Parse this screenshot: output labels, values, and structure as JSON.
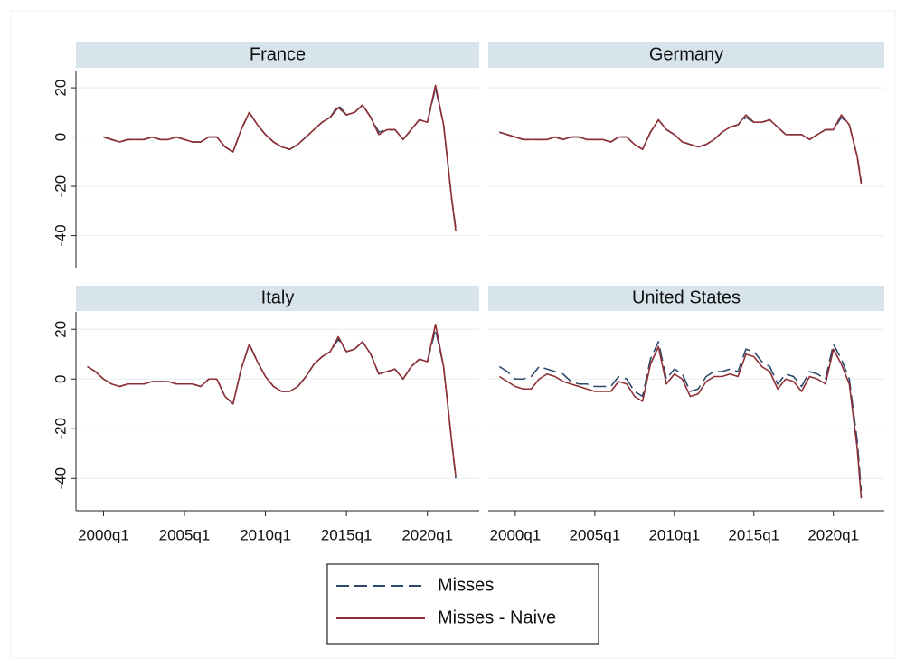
{
  "chart_data": [
    {
      "type": "line",
      "title": "France",
      "grid": true,
      "xlim": [
        1998.3,
        2023.2
      ],
      "ylim": [
        -53,
        27
      ],
      "yticks": [
        -40,
        -20,
        0,
        20
      ],
      "x": [
        1999,
        1999.5,
        2000,
        2000.5,
        2001,
        2001.5,
        2002,
        2002.5,
        2003,
        2003.5,
        2004,
        2004.5,
        2005,
        2005.5,
        2006,
        2006.5,
        2007,
        2007.5,
        2008,
        2008.5,
        2009,
        2009.5,
        2010,
        2010.5,
        2011,
        2011.5,
        2012,
        2012.5,
        2013,
        2013.5,
        2014,
        2014.5,
        2015,
        2015.5,
        2016,
        2016.5,
        2017,
        2017.5,
        2018,
        2018.5,
        2019,
        2019.5,
        2020,
        2020.5,
        2021,
        2021.5,
        2021.75
      ],
      "series": [
        {
          "name": "Misses",
          "color": "#2e4a6b",
          "line_style": "dashed",
          "values": [
            null,
            null,
            0,
            -1,
            -2,
            -1,
            -1,
            -1,
            0,
            -1,
            -1,
            0,
            -1,
            -2,
            -2,
            0,
            0,
            -4,
            -6,
            3,
            10,
            5,
            1,
            -2,
            -4,
            -5,
            -3,
            0,
            3,
            6,
            8,
            13,
            9,
            10,
            13,
            8,
            2,
            3,
            3,
            -1,
            3,
            7,
            6,
            20,
            5,
            -25,
            -37
          ]
        },
        {
          "name": "Misses - Naive",
          "color": "#8e2e34",
          "line_style": "solid",
          "values": [
            null,
            null,
            0,
            -1,
            -2,
            -1,
            -1,
            -1,
            0,
            -1,
            -1,
            0,
            -1,
            -2,
            -2,
            0,
            0,
            -4,
            -6,
            3,
            10,
            5,
            1,
            -2,
            -4,
            -5,
            -3,
            0,
            3,
            6,
            8,
            12,
            9,
            10,
            13,
            8,
            1,
            3,
            3,
            -1,
            3,
            7,
            6,
            21,
            5,
            -25,
            -38
          ]
        }
      ]
    },
    {
      "type": "line",
      "title": "Germany",
      "grid": true,
      "xlim": [
        1998.3,
        2023.2
      ],
      "ylim": [
        -53,
        27
      ],
      "yticks": [
        -40,
        -20,
        0,
        20
      ],
      "x": [
        1999,
        1999.5,
        2000,
        2000.5,
        2001,
        2001.5,
        2002,
        2002.5,
        2003,
        2003.5,
        2004,
        2004.5,
        2005,
        2005.5,
        2006,
        2006.5,
        2007,
        2007.5,
        2008,
        2008.5,
        2009,
        2009.5,
        2010,
        2010.5,
        2011,
        2011.5,
        2012,
        2012.5,
        2013,
        2013.5,
        2014,
        2014.5,
        2015,
        2015.5,
        2016,
        2016.5,
        2017,
        2017.5,
        2018,
        2018.5,
        2019,
        2019.5,
        2020,
        2020.5,
        2021,
        2021.5,
        2021.75
      ],
      "series": [
        {
          "name": "Misses",
          "color": "#2e4a6b",
          "line_style": "dashed",
          "values": [
            2,
            1,
            0,
            -1,
            -1,
            -1,
            -1,
            0,
            -1,
            0,
            0,
            -1,
            -1,
            -1,
            -2,
            0,
            0,
            -3,
            -5,
            2,
            7,
            3,
            1,
            -2,
            -3,
            -4,
            -3,
            -1,
            2,
            4,
            5,
            8,
            6,
            6,
            7,
            4,
            1,
            1,
            1,
            -1,
            1,
            3,
            3,
            8,
            5,
            -8,
            -18
          ]
        },
        {
          "name": "Misses - Naive",
          "color": "#8e2e34",
          "line_style": "solid",
          "values": [
            2,
            1,
            0,
            -1,
            -1,
            -1,
            -1,
            0,
            -1,
            0,
            0,
            -1,
            -1,
            -1,
            -2,
            0,
            0,
            -3,
            -5,
            2,
            7,
            3,
            1,
            -2,
            -3,
            -4,
            -3,
            -1,
            2,
            4,
            5,
            9,
            6,
            6,
            7,
            4,
            1,
            1,
            1,
            -1,
            1,
            3,
            3,
            9,
            5,
            -8,
            -19
          ]
        }
      ]
    },
    {
      "type": "line",
      "title": "Italy",
      "grid": true,
      "xlim": [
        1998.3,
        2023.2
      ],
      "ylim": [
        -53,
        27
      ],
      "yticks": [
        -40,
        -20,
        0,
        20
      ],
      "xticks": [
        {
          "value": 2000,
          "label": "2000q1"
        },
        {
          "value": 2005,
          "label": "2005q1"
        },
        {
          "value": 2010,
          "label": "2010q1"
        },
        {
          "value": 2015,
          "label": "2015q1"
        },
        {
          "value": 2020,
          "label": "2020q1"
        }
      ],
      "x": [
        1999,
        1999.5,
        2000,
        2000.5,
        2001,
        2001.5,
        2002,
        2002.5,
        2003,
        2003.5,
        2004,
        2004.5,
        2005,
        2005.5,
        2006,
        2006.5,
        2007,
        2007.5,
        2008,
        2008.5,
        2009,
        2009.5,
        2010,
        2010.5,
        2011,
        2011.5,
        2012,
        2012.5,
        2013,
        2013.5,
        2014,
        2014.5,
        2015,
        2015.5,
        2016,
        2016.5,
        2017,
        2017.5,
        2018,
        2018.5,
        2019,
        2019.5,
        2020,
        2020.5,
        2021,
        2021.5,
        2021.75
      ],
      "series": [
        {
          "name": "Misses",
          "color": "#2e4a6b",
          "line_style": "dashed",
          "values": [
            5,
            3,
            0,
            -2,
            -3,
            -2,
            -2,
            -2,
            -1,
            -1,
            -1,
            -2,
            -2,
            -2,
            -3,
            0,
            0,
            -7,
            -10,
            4,
            14,
            7,
            1,
            -3,
            -5,
            -5,
            -3,
            1,
            6,
            9,
            11,
            16,
            11,
            12,
            15,
            10,
            2,
            3,
            4,
            0,
            5,
            8,
            7,
            20,
            5,
            -25,
            -40
          ]
        },
        {
          "name": "Misses - Naive",
          "color": "#8e2e34",
          "line_style": "solid",
          "values": [
            5,
            3,
            0,
            -2,
            -3,
            -2,
            -2,
            -2,
            -1,
            -1,
            -1,
            -2,
            -2,
            -2,
            -3,
            0,
            0,
            -7,
            -10,
            4,
            14,
            7,
            1,
            -3,
            -5,
            -5,
            -3,
            1,
            6,
            9,
            11,
            17,
            11,
            12,
            15,
            10,
            2,
            3,
            4,
            0,
            5,
            8,
            7,
            22,
            5,
            -25,
            -39
          ]
        }
      ]
    },
    {
      "type": "line",
      "title": "United States",
      "grid": true,
      "xlim": [
        1998.3,
        2023.2
      ],
      "ylim": [
        -53,
        27
      ],
      "yticks": [
        -40,
        -20,
        0,
        20
      ],
      "xticks": [
        {
          "value": 2000,
          "label": "2000q1"
        },
        {
          "value": 2005,
          "label": "2005q1"
        },
        {
          "value": 2010,
          "label": "2010q1"
        },
        {
          "value": 2015,
          "label": "2015q1"
        },
        {
          "value": 2020,
          "label": "2020q1"
        }
      ],
      "x": [
        1999,
        1999.5,
        2000,
        2000.5,
        2001,
        2001.5,
        2002,
        2002.5,
        2003,
        2003.5,
        2004,
        2004.5,
        2005,
        2005.5,
        2006,
        2006.5,
        2007,
        2007.5,
        2008,
        2008.5,
        2009,
        2009.5,
        2010,
        2010.5,
        2011,
        2011.5,
        2012,
        2012.5,
        2013,
        2013.5,
        2014,
        2014.5,
        2015,
        2015.5,
        2016,
        2016.5,
        2017,
        2017.5,
        2018,
        2018.5,
        2019,
        2019.5,
        2020,
        2020.5,
        2021,
        2021.5,
        2021.75
      ],
      "series": [
        {
          "name": "Misses",
          "color": "#2e4a6b",
          "line_style": "dashed",
          "values": [
            5,
            3,
            0,
            0,
            1,
            5,
            4,
            3,
            2,
            -1,
            -2,
            -2,
            -3,
            -3,
            -3,
            1,
            0,
            -5,
            -7,
            8,
            15,
            0,
            4,
            2,
            -5,
            -4,
            1,
            3,
            3,
            4,
            3,
            12,
            11,
            7,
            5,
            -2,
            2,
            1,
            -3,
            3,
            2,
            0,
            14,
            8,
            0,
            -25,
            -45
          ]
        },
        {
          "name": "Misses - Naive",
          "color": "#8e2e34",
          "line_style": "solid",
          "values": [
            1,
            -1,
            -3,
            -4,
            -4,
            0,
            2,
            1,
            -1,
            -2,
            -3,
            -4,
            -5,
            -5,
            -5,
            -1,
            -2,
            -7,
            -9,
            6,
            13,
            -2,
            2,
            0,
            -7,
            -6,
            -1,
            1,
            1,
            2,
            1,
            10,
            9,
            5,
            3,
            -4,
            0,
            -1,
            -5,
            1,
            0,
            -2,
            12,
            6,
            -2,
            -28,
            -48
          ]
        }
      ]
    }
  ]
}
